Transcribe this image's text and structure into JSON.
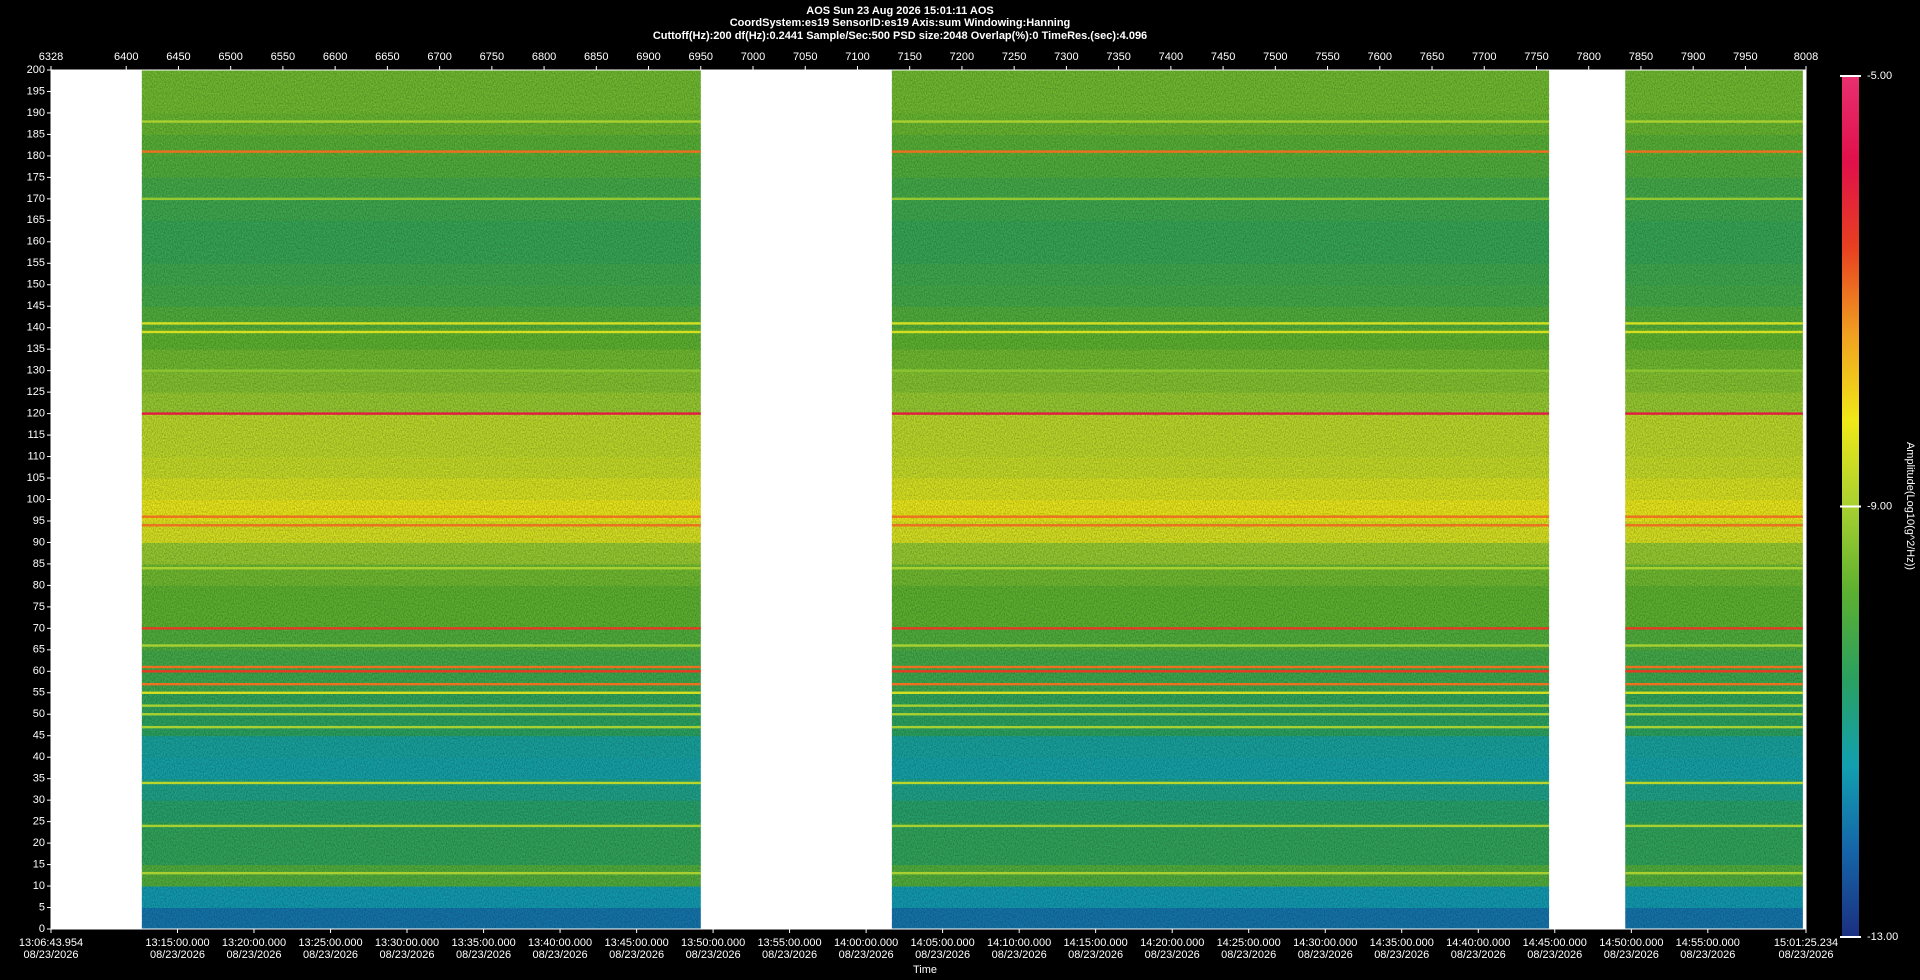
{
  "chart_data": {
    "type": "spectrogram",
    "title": "AOS  Sun 23 Aug 2026 15:01:11  AOS",
    "subtitle": "CoordSystem:es19   SensorID:es19    Axis:sum    Windowing:Hanning",
    "settings_line": "Cuttoff(Hz):200    df(Hz):0.2441    Sample/Sec:500    PSD size:2048    Overlap(%):0    TimeRes.(sec):4.096",
    "xlabel": "Time",
    "colorbar_label": "Amplitude(Log10(g^2/Hz))",
    "xlim": [
      6328,
      8008
    ],
    "xticks": [
      6328,
      6400,
      6450,
      6500,
      6550,
      6600,
      6650,
      6700,
      6750,
      6800,
      6850,
      6900,
      6950,
      7000,
      7050,
      7100,
      7150,
      7200,
      7250,
      7300,
      7350,
      7400,
      7450,
      7500,
      7550,
      7600,
      7650,
      7700,
      7750,
      7800,
      7850,
      7900,
      7950,
      8008
    ],
    "time_ticks": [
      {
        "value": 6328,
        "label": "13:06:43.954",
        "date": "08/23/2026"
      },
      {
        "value": 6449.1,
        "label": "13:15:00.000",
        "date": "08/23/2026"
      },
      {
        "value": 6522.3,
        "label": "13:20:00.000",
        "date": "08/23/2026"
      },
      {
        "value": 6595.6,
        "label": "13:25:00.000",
        "date": "08/23/2026"
      },
      {
        "value": 6668.8,
        "label": "13:30:00.000",
        "date": "08/23/2026"
      },
      {
        "value": 6742.1,
        "label": "13:35:00.000",
        "date": "08/23/2026"
      },
      {
        "value": 6815.3,
        "label": "13:40:00.000",
        "date": "08/23/2026"
      },
      {
        "value": 6888.6,
        "label": "13:45:00.000",
        "date": "08/23/2026"
      },
      {
        "value": 6961.8,
        "label": "13:50:00.000",
        "date": "08/23/2026"
      },
      {
        "value": 7035.0,
        "label": "13:55:00.000",
        "date": "08/23/2026"
      },
      {
        "value": 7108.3,
        "label": "14:00:00.000",
        "date": "08/23/2026"
      },
      {
        "value": 7181.5,
        "label": "14:05:00.000",
        "date": "08/23/2026"
      },
      {
        "value": 7254.8,
        "label": "14:10:00.000",
        "date": "08/23/2026"
      },
      {
        "value": 7328.0,
        "label": "14:15:00.000",
        "date": "08/23/2026"
      },
      {
        "value": 7401.3,
        "label": "14:20:00.000",
        "date": "08/23/2026"
      },
      {
        "value": 7474.5,
        "label": "14:25:00.000",
        "date": "08/23/2026"
      },
      {
        "value": 7547.8,
        "label": "14:30:00.000",
        "date": "08/23/2026"
      },
      {
        "value": 7621.0,
        "label": "14:35:00.000",
        "date": "08/23/2026"
      },
      {
        "value": 7694.3,
        "label": "14:40:00.000",
        "date": "08/23/2026"
      },
      {
        "value": 7767.5,
        "label": "14:45:00.000",
        "date": "08/23/2026"
      },
      {
        "value": 7840.8,
        "label": "14:50:00.000",
        "date": "08/23/2026"
      },
      {
        "value": 7914.0,
        "label": "14:55:00.000",
        "date": "08/23/2026"
      },
      {
        "value": 8008,
        "label": "15:01:25.234",
        "date": "08/23/2026"
      }
    ],
    "ylim": [
      0,
      200
    ],
    "yticks": [
      0,
      5,
      10,
      15,
      20,
      25,
      30,
      35,
      40,
      45,
      50,
      55,
      60,
      65,
      70,
      75,
      80,
      85,
      90,
      95,
      100,
      105,
      110,
      115,
      120,
      125,
      130,
      135,
      140,
      145,
      150,
      155,
      160,
      165,
      170,
      175,
      180,
      185,
      190,
      195,
      200
    ],
    "segments": [
      [
        6415,
        6950
      ],
      [
        7133,
        7762
      ],
      [
        7835,
        8005
      ]
    ],
    "freq_bins": [
      0,
      5,
      10,
      15,
      20,
      25,
      30,
      35,
      40,
      45,
      50,
      55,
      60,
      65,
      70,
      75,
      80,
      85,
      90,
      95,
      100,
      105,
      110,
      115,
      120,
      125,
      130,
      135,
      140,
      145,
      150,
      155,
      160,
      165,
      170,
      175,
      180,
      185,
      190,
      195,
      200
    ],
    "amplitudes": [
      -12,
      -11.5,
      -10,
      -10.5,
      -10.5,
      -10.7,
      -11,
      -11.3,
      -11.2,
      -10.6,
      -10.5,
      -10.3,
      -10.2,
      -10,
      -9.8,
      -9.8,
      -9.6,
      -9.2,
      -8.5,
      -8.3,
      -8.5,
      -8.7,
      -8.8,
      -8.8,
      -9.2,
      -9.4,
      -9.6,
      -9.8,
      -10,
      -10.2,
      -10.3,
      -10.4,
      -10.4,
      -10.3,
      -10.2,
      -10,
      -9.9,
      -9.7,
      -9.6,
      -9.6
    ],
    "lines": [
      {
        "freq": 120,
        "amplitude": -6
      },
      {
        "freq": 70,
        "amplitude": -6.5
      },
      {
        "freq": 60,
        "amplitude": -6.5
      },
      {
        "freq": 61,
        "amplitude": -7
      },
      {
        "freq": 57,
        "amplitude": -7
      },
      {
        "freq": 55,
        "amplitude": -8.5
      },
      {
        "freq": 52,
        "amplitude": -9
      },
      {
        "freq": 50,
        "amplitude": -9
      },
      {
        "freq": 47,
        "amplitude": -9
      },
      {
        "freq": 96,
        "amplitude": -7
      },
      {
        "freq": 94,
        "amplitude": -7
      },
      {
        "freq": 181,
        "amplitude": -7
      },
      {
        "freq": 141,
        "amplitude": -8.5
      },
      {
        "freq": 139,
        "amplitude": -8.5
      },
      {
        "freq": 34,
        "amplitude": -8.8
      },
      {
        "freq": 24,
        "amplitude": -9
      },
      {
        "freq": 13,
        "amplitude": -9
      },
      {
        "freq": 188,
        "amplitude": -9
      },
      {
        "freq": 170,
        "amplitude": -9.2
      },
      {
        "freq": 130,
        "amplitude": -9.3
      },
      {
        "freq": 84,
        "amplitude": -9
      },
      {
        "freq": 66,
        "amplitude": -9
      }
    ],
    "clim": [
      -13,
      -5
    ],
    "cticks": [
      {
        "value": -5,
        "label": "-5.00"
      },
      {
        "value": -9,
        "label": "-9.00"
      },
      {
        "value": -13,
        "label": "-13.00"
      }
    ],
    "colormap": [
      "#1b2f80",
      "#1565a8",
      "#12a0b0",
      "#2aa060",
      "#5cb030",
      "#a8d030",
      "#f0e818",
      "#f0a020",
      "#e84020",
      "#e0104a",
      "#e83070"
    ]
  }
}
